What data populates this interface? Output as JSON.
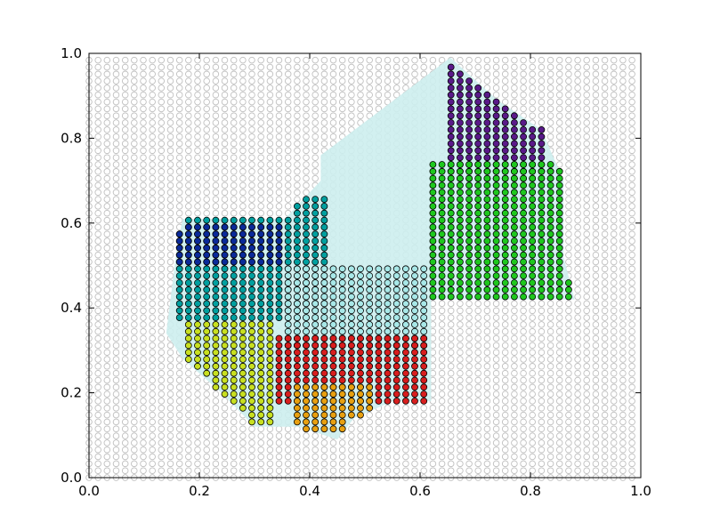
{
  "chart_data": {
    "type": "scatter",
    "title": "",
    "xlabel": "",
    "ylabel": "",
    "xlim": [
      0,
      1
    ],
    "ylim": [
      0,
      1
    ],
    "grid": false,
    "legend": "none",
    "xticks": [
      "0.0",
      "0.2",
      "0.4",
      "0.6",
      "0.8",
      "1.0"
    ],
    "yticks": [
      "0.0",
      "0.2",
      "0.4",
      "0.6",
      "0.8",
      "1.0"
    ],
    "background_points": {
      "x_range": [
        0.0,
        1.0
      ],
      "y_range": [
        0.0,
        1.0
      ],
      "step": 0.0164,
      "color": "#bfbfbf"
    },
    "region_fill_color": "#cdeeee",
    "region_polygon": [
      [
        0.14,
        0.34
      ],
      [
        0.16,
        0.55
      ],
      [
        0.17,
        0.61
      ],
      [
        0.355,
        0.61
      ],
      [
        0.42,
        0.7
      ],
      [
        0.42,
        0.76
      ],
      [
        0.655,
        0.99
      ],
      [
        0.74,
        0.89
      ],
      [
        0.82,
        0.82
      ],
      [
        0.86,
        0.7
      ],
      [
        0.86,
        0.52
      ],
      [
        0.88,
        0.42
      ],
      [
        0.62,
        0.42
      ],
      [
        0.62,
        0.18
      ],
      [
        0.55,
        0.18
      ],
      [
        0.48,
        0.14
      ],
      [
        0.45,
        0.09
      ],
      [
        0.38,
        0.12
      ],
      [
        0.3,
        0.12
      ],
      [
        0.24,
        0.2
      ],
      [
        0.17,
        0.28
      ]
    ],
    "series": [
      {
        "color": "#0a2a2a",
        "x": [
          0.655,
          0.86
        ],
        "y": [
          0.86,
          0.98
        ],
        "clip": [
          [
            0.43,
            0.74
          ],
          [
            0.49,
            0.98
          ],
          [
            0.655,
            0.98
          ],
          [
            0.655,
            0.74
          ]
        ]
      },
      {
        "color": "#5a1a8a",
        "x": [
          0.655,
          0.84
        ],
        "y": [
          0.7,
          0.98
        ],
        "clip": [
          [
            0.655,
            0.98
          ],
          [
            0.74,
            0.9
          ],
          [
            0.82,
            0.82
          ],
          [
            0.84,
            0.7
          ],
          [
            0.655,
            0.7
          ]
        ]
      },
      {
        "color": "#1ec81e",
        "x": [
          0.43,
          0.88
        ],
        "y": [
          0.42,
          0.74
        ],
        "clip": [
          [
            0.43,
            0.74
          ],
          [
            0.62,
            0.74
          ],
          [
            0.62,
            0.42
          ],
          [
            0.88,
            0.42
          ],
          [
            0.88,
            0.74
          ],
          [
            0.43,
            0.74
          ]
        ]
      },
      {
        "color": "#00a0a0",
        "x": [
          0.16,
          0.62
        ],
        "y": [
          0.37,
          0.66
        ],
        "clip": [
          [
            0.16,
            0.66
          ],
          [
            0.43,
            0.66
          ],
          [
            0.43,
            0.37
          ],
          [
            0.16,
            0.37
          ]
        ]
      },
      {
        "color": "#0a2a9a",
        "x": [
          0.16,
          0.36
        ],
        "y": [
          0.5,
          0.6
        ],
        "clip": [
          [
            0.16,
            0.6
          ],
          [
            0.36,
            0.6
          ],
          [
            0.36,
            0.5
          ],
          [
            0.16,
            0.5
          ]
        ]
      },
      {
        "color": "#a8e8e8",
        "x": [
          0.36,
          0.62
        ],
        "y": [
          0.3,
          0.5
        ],
        "clip": [
          [
            0.36,
            0.5
          ],
          [
            0.62,
            0.5
          ],
          [
            0.62,
            0.3
          ],
          [
            0.36,
            0.3
          ]
        ]
      },
      {
        "color": "#c8e020",
        "x": [
          0.17,
          0.34
        ],
        "y": [
          0.12,
          0.37
        ],
        "clip": [
          [
            0.17,
            0.37
          ],
          [
            0.34,
            0.37
          ],
          [
            0.34,
            0.12
          ],
          [
            0.17,
            0.12
          ]
        ]
      },
      {
        "color": "#d81e1e",
        "x": [
          0.34,
          0.62
        ],
        "y": [
          0.17,
          0.34
        ],
        "clip": [
          [
            0.34,
            0.34
          ],
          [
            0.62,
            0.34
          ],
          [
            0.62,
            0.17
          ],
          [
            0.34,
            0.17
          ]
        ]
      },
      {
        "color": "#e8a010",
        "x": [
          0.37,
          0.52
        ],
        "y": [
          0.1,
          0.22
        ],
        "clip": [
          [
            0.37,
            0.22
          ],
          [
            0.52,
            0.22
          ],
          [
            0.52,
            0.1
          ],
          [
            0.37,
            0.1
          ]
        ]
      }
    ]
  }
}
